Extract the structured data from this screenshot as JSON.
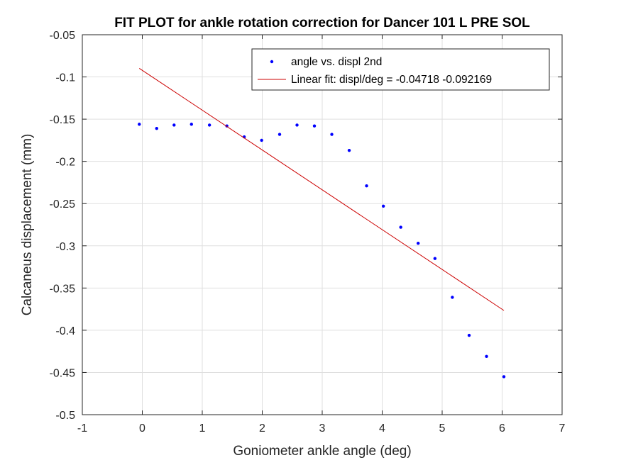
{
  "chart_data": {
    "type": "scatter",
    "title": "FIT PLOT for ankle rotation correction for Dancer 101 L PRE SOL",
    "xlabel": "Goniometer ankle angle (deg)",
    "ylabel": "Calcaneus displacement (mm)",
    "xlim": [
      -1,
      7
    ],
    "ylim": [
      -0.5,
      -0.05
    ],
    "xticks": [
      -1,
      0,
      1,
      2,
      3,
      4,
      5,
      6,
      7
    ],
    "xtick_labels": [
      "-1",
      "0",
      "1",
      "2",
      "3",
      "4",
      "5",
      "6",
      "7"
    ],
    "yticks": [
      -0.5,
      -0.45,
      -0.4,
      -0.35,
      -0.3,
      -0.25,
      -0.2,
      -0.15,
      -0.1,
      -0.05
    ],
    "ytick_labels": [
      "-0.5",
      "-0.45",
      "-0.4",
      "-0.35",
      "-0.3",
      "-0.25",
      "-0.2",
      "-0.15",
      "-0.1",
      "-0.05"
    ],
    "grid": true,
    "legend_position": "top-right",
    "series": [
      {
        "name": "angle vs. displ 2nd",
        "kind": "points",
        "color": "#0000ff",
        "x": [
          -0.05,
          0.24,
          0.53,
          0.82,
          1.12,
          1.41,
          1.7,
          1.99,
          2.29,
          2.58,
          2.87,
          3.16,
          3.45,
          3.74,
          4.02,
          4.31,
          4.6,
          4.88,
          5.17,
          5.45,
          5.74,
          6.03
        ],
        "y": [
          -0.156,
          -0.161,
          -0.157,
          -0.156,
          -0.157,
          -0.158,
          -0.171,
          -0.175,
          -0.168,
          -0.157,
          -0.158,
          -0.168,
          -0.187,
          -0.229,
          -0.253,
          -0.278,
          -0.297,
          -0.315,
          -0.361,
          -0.406,
          -0.431,
          -0.455
        ]
      },
      {
        "name": "Linear fit: displ/deg = -0.04718   -0.092169",
        "kind": "line",
        "color": "#cc0000",
        "x": [
          -0.05,
          6.03
        ],
        "y": [
          -0.0898,
          -0.3766
        ]
      }
    ]
  }
}
